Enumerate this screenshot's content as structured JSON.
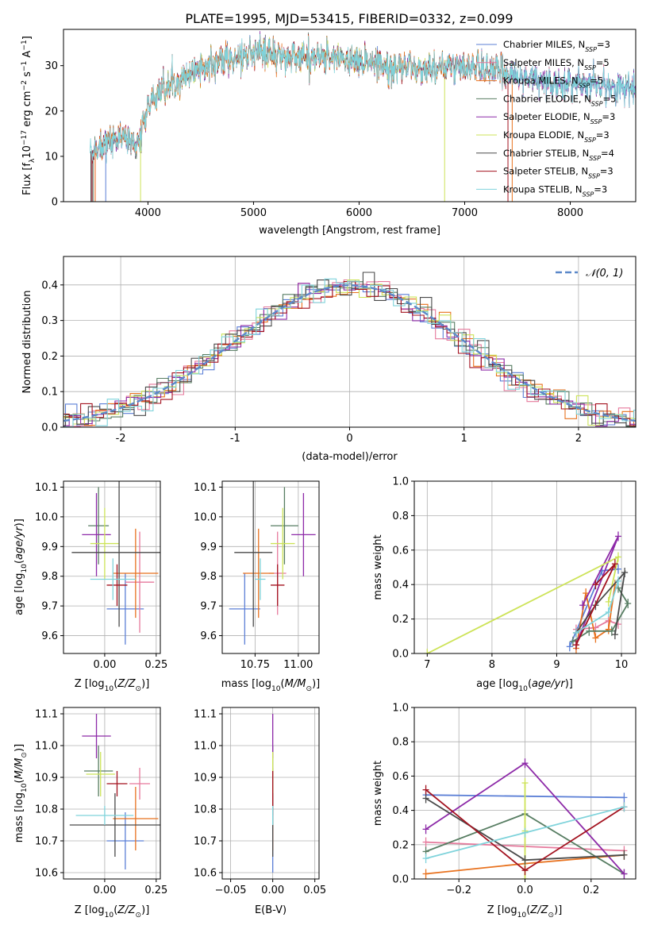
{
  "figure_title": "PLATE=1995, MJD=53415, FIBERID=0332, z=0.099",
  "model_colors": [
    "#5b7fd6",
    "#e6799c",
    "#e8721f",
    "#577d62",
    "#8d2aa8",
    "#cde358",
    "#4a4a4a",
    "#a3121f",
    "#7fd3db"
  ],
  "chart_data": [
    {
      "id": "spectrum",
      "type": "line",
      "xlabel": "wavelength [Angstrom, rest frame]",
      "ylabel": "Flux [f_λ10^-17 erg cm^-2 s^-1 A^-1]",
      "xlim": [
        3200,
        8620
      ],
      "ylim": [
        0,
        38
      ],
      "xticks": [
        4000,
        5000,
        6000,
        7000,
        8000
      ],
      "yticks": [
        0,
        10,
        20,
        30
      ],
      "grid": false,
      "legend_position": "top-right",
      "series_names": [
        "Chabrier MILES, N_SSP=3",
        "Salpeter MILES, N_SSP=5",
        "Kroupa MILES, N_SSP=5",
        "Chabrier ELODIE, N_SSP=5",
        "Salpeter ELODIE, N_SSP=3",
        "Kroupa ELODIE, N_SSP=3",
        "Chabrier STELIB, N_SSP=4",
        "Salpeter STELIB, N_SSP=3",
        "Kroupa STELIB, N_SSP=3"
      ],
      "continuum": {
        "x": [
          3450,
          3600,
          3800,
          3900,
          4000,
          4100,
          4300,
          4500,
          4700,
          4900,
          5100,
          5300,
          5500,
          5700,
          5900,
          6100,
          6300,
          6500,
          6700,
          6900,
          7100,
          7300,
          7500,
          7700,
          7900,
          8100,
          8300,
          8500,
          8620
        ],
        "y": [
          11,
          13,
          14,
          12,
          21,
          24,
          27,
          30,
          31,
          32,
          33,
          32,
          32,
          32,
          31,
          31,
          30,
          29.5,
          29.5,
          30,
          29.5,
          29,
          27,
          27,
          26,
          26,
          25.5,
          25,
          25
        ]
      },
      "model_starts": [
        3600,
        3500,
        3500,
        3480,
        3470,
        3930,
        3460,
        3470,
        3450
      ],
      "model_ends": [
        8620,
        8620,
        7450,
        8620,
        8620,
        6810,
        8620,
        7410,
        8620
      ]
    },
    {
      "id": "residual_hist",
      "type": "histogram",
      "xlabel": "(data-model)/error",
      "ylabel": "Normed distribution",
      "xlim": [
        -2.5,
        2.5
      ],
      "ylim": [
        0,
        0.48
      ],
      "xticks": [
        -2,
        -1,
        0,
        1,
        2
      ],
      "yticks": [
        0.0,
        0.1,
        0.2,
        0.3,
        0.4
      ],
      "grid": true,
      "reference_curve": "𝒩(0, 1)",
      "bin_width": 0.1,
      "legend_position": "top-right"
    },
    {
      "id": "age_vs_z",
      "type": "scatter",
      "xlabel": "Z [log10(Z/Z⊙)]",
      "ylabel": "age [log10(age/yr)]",
      "xlim": [
        -0.2,
        0.27
      ],
      "ylim": [
        9.54,
        10.12
      ],
      "xticks": [
        0.0,
        0.25
      ],
      "xtick_labels": [
        "0.00",
        "0.25"
      ],
      "yticks": [
        9.6,
        9.7,
        9.8,
        9.9,
        10.0,
        10.1
      ],
      "grid": true,
      "points": [
        {
          "x": 0.1,
          "y": 9.69,
          "xerr": 0.09,
          "yerr": 0.12
        },
        {
          "x": 0.17,
          "y": 9.78,
          "xerr": 0.07,
          "yerr": 0.17
        },
        {
          "x": 0.15,
          "y": 9.81,
          "xerr": 0.11,
          "yerr": 0.15
        },
        {
          "x": -0.03,
          "y": 9.97,
          "xerr": 0.05,
          "yerr": 0.13
        },
        {
          "x": -0.04,
          "y": 9.94,
          "xerr": 0.07,
          "yerr": 0.14
        },
        {
          "x": 0.0,
          "y": 9.91,
          "xerr": 0.07,
          "yerr": 0.12
        },
        {
          "x": 0.07,
          "y": 9.88,
          "xerr": 0.23,
          "yerr": 0.25
        },
        {
          "x": 0.06,
          "y": 9.77,
          "xerr": 0.05,
          "yerr": 0.07
        },
        {
          "x": 0.04,
          "y": 9.79,
          "xerr": 0.11,
          "yerr": 0.07
        }
      ]
    },
    {
      "id": "age_vs_mass",
      "type": "scatter",
      "xlabel": "mass [log10(M/M⊙)]",
      "ylabel": "",
      "xlim": [
        10.56,
        11.12
      ],
      "ylim": [
        9.54,
        10.12
      ],
      "xticks": [
        10.75,
        11.0
      ],
      "xtick_labels": [
        "10.75",
        "11.00"
      ],
      "yticks": [
        9.6,
        9.7,
        9.8,
        9.9,
        10.0,
        10.1
      ],
      "grid": true,
      "points": [
        {
          "x": 10.69,
          "y": 9.69,
          "xerr": 0.09,
          "yerr": 0.12
        },
        {
          "x": 10.88,
          "y": 9.81,
          "xerr": 0.05,
          "yerr": 0.14
        },
        {
          "x": 10.77,
          "y": 9.81,
          "xerr": 0.09,
          "yerr": 0.15
        },
        {
          "x": 10.92,
          "y": 9.97,
          "xerr": 0.08,
          "yerr": 0.13
        },
        {
          "x": 11.03,
          "y": 9.94,
          "xerr": 0.07,
          "yerr": 0.14
        },
        {
          "x": 10.91,
          "y": 9.91,
          "xerr": 0.07,
          "yerr": 0.12
        },
        {
          "x": 10.74,
          "y": 9.88,
          "xerr": 0.11,
          "yerr": 0.25
        },
        {
          "x": 10.88,
          "y": 9.77,
          "xerr": 0.04,
          "yerr": 0.07
        },
        {
          "x": 10.78,
          "y": 9.79,
          "xerr": 0.03,
          "yerr": 0.07
        }
      ]
    },
    {
      "id": "mass_weight_vs_age",
      "type": "line",
      "xlabel": "age [log10(age/yr)]",
      "ylabel": "mass weight",
      "xlim": [
        6.8,
        10.22
      ],
      "ylim": [
        0,
        1.0
      ],
      "xticks": [
        7,
        8,
        9,
        10
      ],
      "yticks": [
        0.0,
        0.2,
        0.4,
        0.6,
        0.8,
        1.0
      ],
      "grid": true,
      "series": [
        {
          "x": [
            9.2,
            9.7,
            9.95
          ],
          "y": [
            0.04,
            0.48,
            0.49
          ]
        },
        {
          "x": [
            9.3,
            9.6,
            9.8,
            9.95
          ],
          "y": [
            0.14,
            0.15,
            0.19,
            0.17
          ]
        },
        {
          "x": [
            9.3,
            9.45,
            9.6,
            9.8,
            9.9
          ],
          "y": [
            0.03,
            0.35,
            0.09,
            0.14,
            0.4
          ]
        },
        {
          "x": [
            9.25,
            9.5,
            9.85,
            10.1,
            9.95
          ],
          "y": [
            0.07,
            0.13,
            0.13,
            0.29,
            0.38
          ]
        },
        {
          "x": [
            9.3,
            9.95,
            9.4
          ],
          "y": [
            0.05,
            0.68,
            0.28
          ]
        },
        {
          "x": [
            7.0,
            9.95,
            9.8
          ],
          "y": [
            0.0,
            0.56,
            0.3
          ]
        },
        {
          "x": [
            9.3,
            9.6,
            10.05,
            9.9
          ],
          "y": [
            0.12,
            0.28,
            0.47,
            0.11
          ]
        },
        {
          "x": [
            9.3,
            9.9,
            9.6
          ],
          "y": [
            0.05,
            0.52,
            0.4
          ]
        },
        {
          "x": [
            9.3,
            9.8,
            9.95
          ],
          "y": [
            0.12,
            0.24,
            0.42
          ]
        }
      ]
    },
    {
      "id": "mass_vs_z",
      "type": "scatter",
      "xlabel": "Z [log10(Z/Z⊙)]",
      "ylabel": "mass [log10(M/M⊙)]",
      "xlim": [
        -0.2,
        0.27
      ],
      "ylim": [
        10.58,
        11.12
      ],
      "xticks": [
        0.0,
        0.25
      ],
      "xtick_labels": [
        "0.00",
        "0.25"
      ],
      "yticks": [
        10.6,
        10.7,
        10.8,
        10.9,
        11.0,
        11.1
      ],
      "grid": true,
      "points": [
        {
          "x": 0.1,
          "y": 10.7,
          "xerr": 0.09,
          "yerr": 0.09
        },
        {
          "x": 0.17,
          "y": 10.88,
          "xerr": 0.05,
          "yerr": 0.05
        },
        {
          "x": 0.15,
          "y": 10.77,
          "xerr": 0.11,
          "yerr": 0.1
        },
        {
          "x": -0.03,
          "y": 10.92,
          "xerr": 0.07,
          "yerr": 0.08
        },
        {
          "x": -0.04,
          "y": 11.03,
          "xerr": 0.07,
          "yerr": 0.07
        },
        {
          "x": -0.02,
          "y": 10.91,
          "xerr": 0.07,
          "yerr": 0.07
        },
        {
          "x": 0.05,
          "y": 10.75,
          "xerr": 0.22,
          "yerr": 0.1
        },
        {
          "x": 0.06,
          "y": 10.88,
          "xerr": 0.05,
          "yerr": 0.04
        },
        {
          "x": 0.0,
          "y": 10.78,
          "xerr": 0.14,
          "yerr": 0.03
        }
      ]
    },
    {
      "id": "mass_vs_ebv",
      "type": "scatter",
      "xlabel": "E(B-V)",
      "ylabel": "",
      "xlim": [
        -0.06,
        0.055
      ],
      "ylim": [
        10.58,
        11.12
      ],
      "xticks": [
        -0.05,
        0.0,
        0.05
      ],
      "xtick_labels": [
        "−0.05",
        "0.00",
        "0.05"
      ],
      "yticks": [
        10.6,
        10.7,
        10.8,
        10.9,
        11.0,
        11.1
      ],
      "grid": true,
      "points": [
        {
          "x": 0.0,
          "y": 10.7,
          "xerr": 0.0,
          "yerr": 0.1
        },
        {
          "x": 0.0,
          "y": 10.88,
          "xerr": 0.0,
          "yerr": 0.05
        },
        {
          "x": 0.0,
          "y": 10.77,
          "xerr": 0.0,
          "yerr": 0.1
        },
        {
          "x": 0.0,
          "y": 10.92,
          "xerr": 0.0,
          "yerr": 0.08
        },
        {
          "x": 0.0,
          "y": 11.03,
          "xerr": 0.0,
          "yerr": 0.07
        },
        {
          "x": 0.0,
          "y": 10.91,
          "xerr": 0.0,
          "yerr": 0.07
        },
        {
          "x": 0.0,
          "y": 10.75,
          "xerr": 0.0,
          "yerr": 0.1
        },
        {
          "x": 0.0,
          "y": 10.85,
          "xerr": 0.0,
          "yerr": 0.07
        },
        {
          "x": 0.0,
          "y": 10.78,
          "xerr": 0.0,
          "yerr": 0.03
        }
      ]
    },
    {
      "id": "mass_weight_vs_z",
      "type": "line",
      "xlabel": "Z [log10(Z/Z⊙)]",
      "ylabel": "mass weight",
      "xlim": [
        -0.335,
        0.335
      ],
      "ylim": [
        0,
        1.0
      ],
      "xticks": [
        -0.2,
        0.0,
        0.2
      ],
      "xtick_labels": [
        "−0.2",
        "0.0",
        "0.2"
      ],
      "yticks": [
        0.0,
        0.2,
        0.4,
        0.6,
        0.8,
        1.0
      ],
      "grid": true,
      "series": [
        {
          "x": [
            -0.3,
            0.3
          ],
          "y": [
            0.49,
            0.475
          ]
        },
        {
          "x": [
            -0.3,
            0.0,
            0.3
          ],
          "y": [
            0.215,
            0.19,
            0.165
          ]
        },
        {
          "x": [
            -0.3,
            0.0,
            0.3
          ],
          "y": [
            0.03,
            0.09,
            0.14
          ]
        },
        {
          "x": [
            -0.3,
            0.0,
            0.3
          ],
          "y": [
            0.16,
            0.38,
            0.03
          ]
        },
        {
          "x": [
            -0.3,
            0.0,
            0.3
          ],
          "y": [
            0.29,
            0.675,
            0.03
          ]
        },
        {
          "x": [
            0.0,
            0.0,
            0.0
          ],
          "y": [
            0.56,
            0.28,
            0.0
          ]
        },
        {
          "x": [
            -0.3,
            0.0,
            0.3
          ],
          "y": [
            0.47,
            0.11,
            0.14
          ]
        },
        {
          "x": [
            -0.3,
            0.0,
            0.3
          ],
          "y": [
            0.52,
            0.05,
            0.42
          ]
        },
        {
          "x": [
            -0.3,
            0.0,
            0.3
          ],
          "y": [
            0.12,
            0.27,
            0.42
          ]
        }
      ]
    }
  ]
}
